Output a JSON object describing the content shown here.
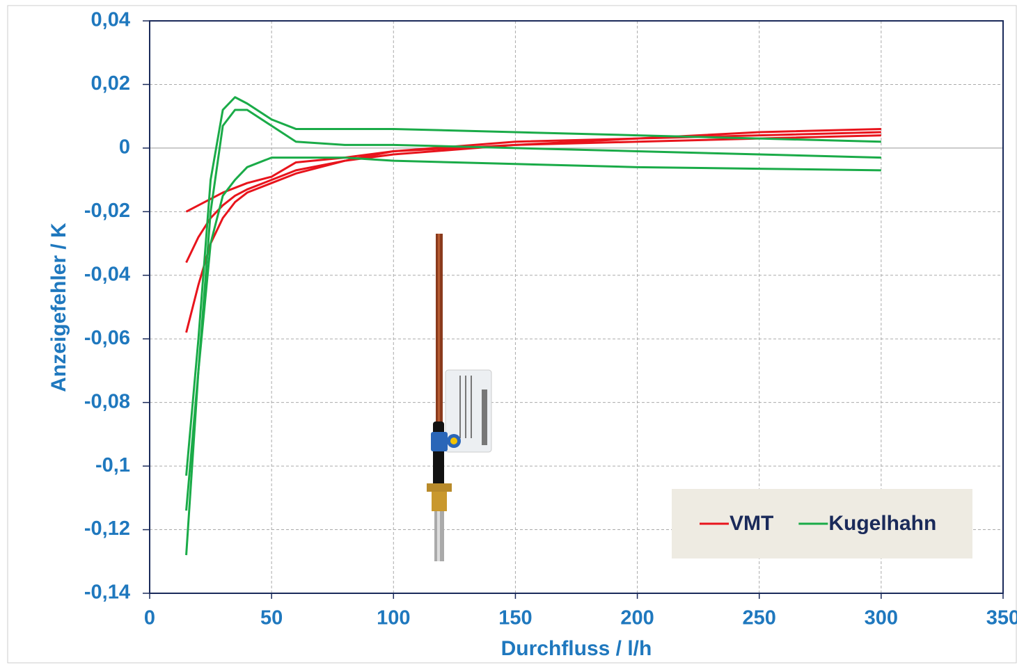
{
  "chart_data": {
    "type": "line",
    "xlabel": "Durchfluss / l/h",
    "ylabel": "Anzeigefehler / K",
    "x": [
      15,
      20,
      25,
      30,
      35,
      40,
      50,
      60,
      80,
      100,
      150,
      200,
      250,
      300
    ],
    "series": [
      {
        "name": "VMT",
        "color": "#e8141c",
        "values": [
          [
            -0.02,
            -0.018,
            -0.016,
            -0.014,
            -0.0125,
            -0.011,
            -0.009,
            -0.0045,
            -0.003,
            -0.001,
            0.001,
            0.003,
            0.004,
            0.005
          ],
          [
            -0.036,
            -0.028,
            -0.022,
            -0.018,
            -0.015,
            -0.013,
            -0.01,
            -0.007,
            -0.004,
            -0.002,
            0.001,
            0.002,
            0.003,
            0.004
          ],
          [
            -0.058,
            -0.043,
            -0.03,
            -0.022,
            -0.017,
            -0.014,
            -0.011,
            -0.008,
            -0.004,
            -0.001,
            0.002,
            0.003,
            0.005,
            0.006
          ]
        ]
      },
      {
        "name": "Kugelhahn",
        "color": "#1aab48",
        "values": [
          [
            -0.103,
            -0.06,
            -0.01,
            0.012,
            0.016,
            0.014,
            0.009,
            0.006,
            0.006,
            0.006,
            0.005,
            0.004,
            0.003,
            0.002
          ],
          [
            -0.114,
            -0.07,
            -0.02,
            0.007,
            0.012,
            0.012,
            0.007,
            0.002,
            0.001,
            0.001,
            0.0,
            -0.001,
            -0.002,
            -0.003
          ],
          [
            -0.128,
            -0.07,
            -0.03,
            -0.015,
            -0.01,
            -0.006,
            -0.003,
            -0.003,
            -0.003,
            -0.004,
            -0.005,
            -0.006,
            -0.0065,
            -0.007
          ]
        ]
      }
    ],
    "xlim": [
      0,
      350
    ],
    "xticks": [
      0,
      50,
      100,
      150,
      200,
      250,
      300,
      350
    ],
    "ylim": [
      -0.14,
      0.04
    ],
    "yticks": [
      {
        "value": -0.14,
        "label": "-0,14"
      },
      {
        "value": -0.12,
        "label": "-0,12"
      },
      {
        "value": -0.1,
        "label": "-0,1"
      },
      {
        "value": -0.08,
        "label": "-0,08"
      },
      {
        "value": -0.06,
        "label": "-0,06"
      },
      {
        "value": -0.04,
        "label": "-0,04"
      },
      {
        "value": -0.02,
        "label": "-0,02"
      },
      0,
      {
        "value": 0.02,
        "label": "0,02"
      },
      {
        "value": 0.04,
        "label": "0,04"
      }
    ],
    "grid": true,
    "legend": "lower right"
  }
}
